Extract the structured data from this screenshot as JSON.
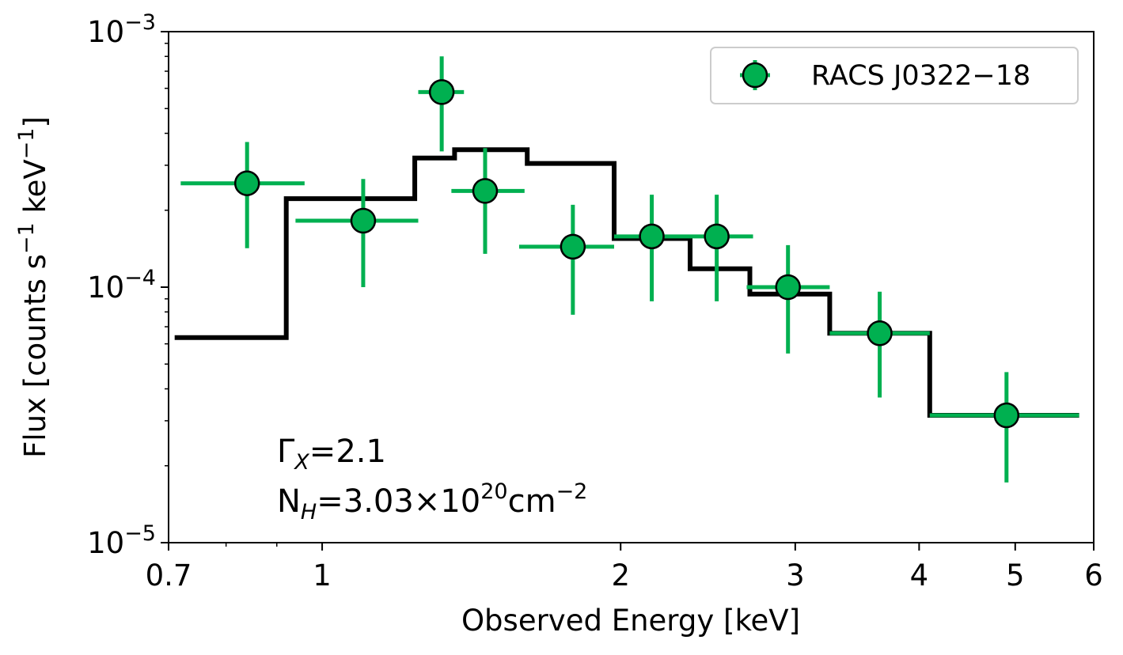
{
  "chart_data": {
    "type": "scatter",
    "title": "",
    "xlabel": "Observed Energy [keV]",
    "ylabel": {
      "main": "Flux [counts s",
      "exp1": "−1",
      "mid": " keV",
      "exp2": "−1",
      "end": "]"
    },
    "xscale": "log",
    "yscale": "log",
    "xlim": [
      0.7,
      6.0
    ],
    "ylim": [
      1e-05,
      0.001
    ],
    "xticks": [
      {
        "value": 0.7,
        "label": "0.7"
      },
      {
        "value": 1,
        "label": "1"
      },
      {
        "value": 2,
        "label": "2"
      },
      {
        "value": 3,
        "label": "3"
      },
      {
        "value": 4,
        "label": "4"
      },
      {
        "value": 5,
        "label": "5"
      },
      {
        "value": 6,
        "label": "6"
      }
    ],
    "xminor": [
      0.8,
      0.9
    ],
    "yticks": [
      {
        "value": 1e-05,
        "base": "10",
        "exp": "−5"
      },
      {
        "value": 0.0001,
        "base": "10",
        "exp": "−4"
      },
      {
        "value": 0.001,
        "base": "10",
        "exp": "−3"
      }
    ],
    "legend": {
      "position": "top-right",
      "entries": [
        {
          "label": "RACS J0322−18",
          "color": "#00b050"
        }
      ]
    },
    "series": [
      {
        "name": "RACS J0322−18",
        "kind": "errorbar",
        "color": "#00b050",
        "points": [
          {
            "x": 0.84,
            "xlo": 0.72,
            "xhi": 0.96,
            "y": 0.000255,
            "ylo": 0.000142,
            "yhi": 0.00037
          },
          {
            "x": 1.1,
            "xlo": 0.94,
            "xhi": 1.25,
            "y": 0.000182,
            "ylo": 0.0001,
            "yhi": 0.000265
          },
          {
            "x": 1.32,
            "xlo": 1.25,
            "xhi": 1.39,
            "y": 0.00058,
            "ylo": 0.00034,
            "yhi": 0.0008
          },
          {
            "x": 1.46,
            "xlo": 1.35,
            "xhi": 1.6,
            "y": 0.000238,
            "ylo": 0.000135,
            "yhi": 0.00035
          },
          {
            "x": 1.79,
            "xlo": 1.58,
            "xhi": 1.97,
            "y": 0.000144,
            "ylo": 7.8e-05,
            "yhi": 0.00021
          },
          {
            "x": 2.15,
            "xlo": 1.97,
            "xhi": 2.35,
            "y": 0.000158,
            "ylo": 8.8e-05,
            "yhi": 0.00023
          },
          {
            "x": 2.5,
            "xlo": 2.35,
            "xhi": 2.72,
            "y": 0.000158,
            "ylo": 8.8e-05,
            "yhi": 0.00023
          },
          {
            "x": 2.95,
            "xlo": 2.68,
            "xhi": 3.25,
            "y": 0.0001,
            "ylo": 5.5e-05,
            "yhi": 0.000146
          },
          {
            "x": 3.65,
            "xlo": 3.25,
            "xhi": 4.1,
            "y": 6.6e-05,
            "ylo": 3.7e-05,
            "yhi": 9.6e-05
          },
          {
            "x": 4.9,
            "xlo": 4.1,
            "xhi": 5.8,
            "y": 3.15e-05,
            "ylo": 1.72e-05,
            "yhi": 4.65e-05
          }
        ]
      },
      {
        "name": "model",
        "kind": "step",
        "color": "#000000",
        "edges": [
          0.71,
          0.92,
          1.24,
          1.36,
          1.61,
          1.97,
          2.35,
          2.7,
          3.25,
          4.1,
          5.8
        ],
        "values": [
          6.35e-05,
          0.000222,
          0.00032,
          0.000345,
          0.000305,
          0.000155,
          0.000118,
          9.4e-05,
          6.6e-05,
          3.15e-05
        ]
      }
    ],
    "annotations": {
      "gamma": {
        "sym": "Γ",
        "sub": "X",
        "text": "=2.1"
      },
      "nh": {
        "sym": "N",
        "sub": "H",
        "pre": "=3.03×10",
        "sup": "20",
        "unit": "cm",
        "unit_sup": "−2"
      }
    }
  }
}
